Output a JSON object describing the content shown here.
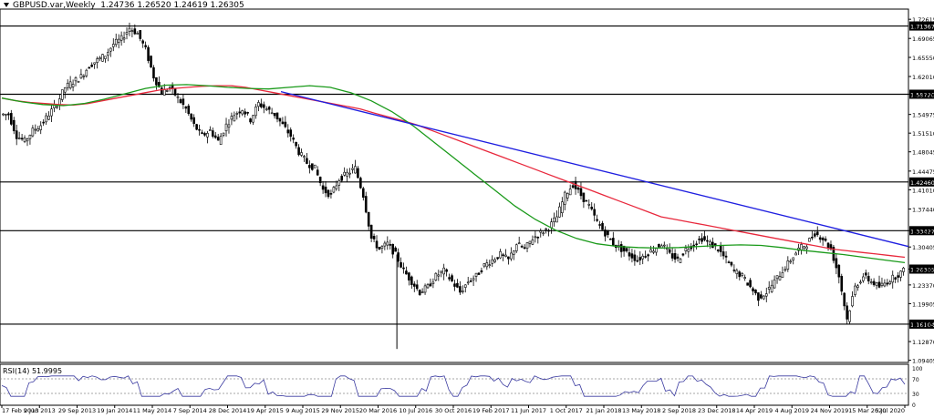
{
  "header": {
    "symbol": "GBPUSD.var,Weekly",
    "ohlc": "1.24736 1.26520 1.24619 1.26305"
  },
  "rsi": {
    "label": "RSI(14) 51.9995",
    "levels": [
      "100",
      "70",
      "30",
      "0"
    ]
  },
  "colors": {
    "price": "#000000",
    "ma_red": "#e8283c",
    "ma_green": "#1a9a1a",
    "trendline": "#1f1fe0",
    "rsi_line": "#3a3aa0",
    "current_price_bg": "#000000"
  },
  "chart_data": {
    "type": "candlestick",
    "title": "GBPUSD.var,Weekly",
    "ylim": [
      1.09,
      1.745
    ],
    "y_ticks": [
      "1.72615",
      "1.69065",
      "1.65550",
      "1.62010",
      "1.58720",
      "1.54975",
      "1.51510",
      "1.48045",
      "1.44475",
      "1.41010",
      "1.37440",
      "1.33427",
      "1.30405",
      "1.26305",
      "1.23370",
      "1.19905",
      "1.16104",
      "1.12870",
      "1.09405"
    ],
    "x_ticks": [
      "17 Feb 2013",
      "9 Jun 2013",
      "29 Sep 2013",
      "19 Jan 2014",
      "11 May 2014",
      "7 Sep 2014",
      "28 Dec 2014",
      "19 Apr 2015",
      "9 Aug 2015",
      "29 Nov 2015",
      "20 Mar 2016",
      "10 Jul 2016",
      "30 Oct 2016",
      "19 Feb 2017",
      "11 Jun 2017",
      "1 Oct 2017",
      "21 Jan 2018",
      "13 May 2018",
      "2 Sep 2018",
      "23 Dec 2018",
      "14 Apr 2019",
      "4 Aug 2019",
      "24 Nov 2019",
      "15 Mar 2020",
      "5 Jul 2020"
    ],
    "horizontal_levels": [
      1.71367,
      1.5872,
      1.4246,
      1.33427,
      1.16104
    ],
    "level_labels": [
      "1.71367",
      "1.58720",
      "1.42460",
      "1.33427",
      "1.16104"
    ],
    "current_price": "1.26305",
    "close_series": [
      1.55,
      1.51,
      1.5,
      1.52,
      1.53,
      1.55,
      1.57,
      1.6,
      1.61,
      1.62,
      1.64,
      1.65,
      1.66,
      1.68,
      1.69,
      1.71,
      1.7,
      1.67,
      1.62,
      1.59,
      1.6,
      1.58,
      1.56,
      1.53,
      1.51,
      1.52,
      1.5,
      1.53,
      1.55,
      1.56,
      1.54,
      1.57,
      1.56,
      1.55,
      1.53,
      1.51,
      1.48,
      1.46,
      1.45,
      1.41,
      1.4,
      1.43,
      1.44,
      1.45,
      1.4,
      1.32,
      1.3,
      1.31,
      1.29,
      1.26,
      1.24,
      1.22,
      1.23,
      1.25,
      1.26,
      1.24,
      1.22,
      1.24,
      1.25,
      1.27,
      1.28,
      1.29,
      1.28,
      1.31,
      1.3,
      1.32,
      1.33,
      1.34,
      1.36,
      1.4,
      1.42,
      1.4,
      1.38,
      1.35,
      1.33,
      1.31,
      1.3,
      1.29,
      1.28,
      1.29,
      1.3,
      1.31,
      1.29,
      1.28,
      1.3,
      1.31,
      1.32,
      1.31,
      1.3,
      1.28,
      1.26,
      1.25,
      1.23,
      1.21,
      1.22,
      1.24,
      1.26,
      1.28,
      1.3,
      1.31,
      1.33,
      1.32,
      1.3,
      1.25,
      1.17,
      1.23,
      1.25,
      1.24,
      1.23,
      1.24,
      1.25,
      1.26
    ],
    "ma_red_series": [
      1.58,
      1.575,
      1.572,
      1.57,
      1.568,
      1.567,
      1.57,
      1.575,
      1.58,
      1.585,
      1.59,
      1.595,
      1.598,
      1.6,
      1.602,
      1.603,
      1.603,
      1.6,
      1.595,
      1.59,
      1.585,
      1.58,
      1.575,
      1.57,
      1.565,
      1.56,
      1.552,
      1.545,
      1.538,
      1.53,
      1.52,
      1.51,
      1.5,
      1.49,
      1.48,
      1.47,
      1.46,
      1.45,
      1.44,
      1.43,
      1.42,
      1.41,
      1.4,
      1.39,
      1.38,
      1.37,
      1.36,
      1.355,
      1.35,
      1.345,
      1.34,
      1.335,
      1.33,
      1.325,
      1.32,
      1.315,
      1.31,
      1.305,
      1.3,
      1.297,
      1.294,
      1.291,
      1.288,
      1.285
    ],
    "ma_green_series": [
      1.58,
      1.573,
      1.568,
      1.566,
      1.57,
      1.578,
      1.588,
      1.598,
      1.604,
      1.605,
      1.603,
      1.6,
      1.598,
      1.597,
      1.6,
      1.603,
      1.6,
      1.59,
      1.575,
      1.555,
      1.53,
      1.5,
      1.47,
      1.44,
      1.41,
      1.38,
      1.355,
      1.335,
      1.32,
      1.31,
      1.305,
      1.303,
      1.302,
      1.303,
      1.305,
      1.307,
      1.308,
      1.307,
      1.303,
      1.298,
      1.294,
      1.29,
      1.285,
      1.28,
      1.275
    ]
  }
}
